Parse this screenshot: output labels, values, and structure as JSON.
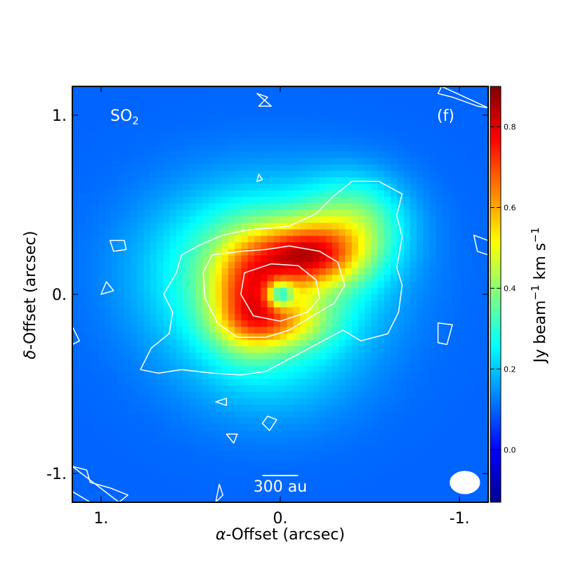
{
  "chart_data": {
    "type": "heatmap",
    "map_label": "SO",
    "map_label_sub": "2",
    "panel_label": "(f)",
    "xlabel_symbol": "α",
    "xlabel_rest": "-Offset (arcsec)",
    "ylabel_symbol": "δ",
    "ylabel_rest": "-Offset (arcsec)",
    "x_ticks": [
      {
        "value": 1.0,
        "label": "1."
      },
      {
        "value": 0.0,
        "label": "0."
      },
      {
        "value": -1.0,
        "label": "-1."
      }
    ],
    "y_ticks": [
      {
        "value": 1.0,
        "label": "1."
      },
      {
        "value": 0.0,
        "label": "0."
      },
      {
        "value": -1.0,
        "label": "-1."
      }
    ],
    "xlim": [
      1.16,
      -1.16
    ],
    "ylim": [
      -1.16,
      1.16
    ],
    "scalebar_label": "300 au",
    "scalebar_length_arcsec": 0.2,
    "colorbar": {
      "label_main": "Jy beam",
      "label_sup1": "−1",
      "label_mid": " km s",
      "label_sup2": "−1",
      "range": [
        -0.13,
        0.9
      ],
      "ticks": [
        {
          "value": 0.0,
          "label": "0.0"
        },
        {
          "value": 0.2,
          "label": "0.2"
        },
        {
          "value": 0.4,
          "label": "0.4"
        },
        {
          "value": 0.6,
          "label": "0.6"
        },
        {
          "value": 0.8,
          "label": "0.8"
        }
      ],
      "colormap": "jet"
    },
    "contour_color": "#ffffff",
    "emission_components": [
      {
        "type": "background",
        "value": 0.1
      },
      {
        "type": "gaussian",
        "x": 0.1,
        "y": 0.12,
        "sx": 0.42,
        "sy": 0.32,
        "amp": 0.33
      },
      {
        "type": "gaussian",
        "x": -0.15,
        "y": 0.22,
        "sx": 0.2,
        "sy": 0.12,
        "amp": 0.42
      },
      {
        "type": "gaussian",
        "x": 0.18,
        "y": 0.0,
        "sx": 0.14,
        "sy": 0.2,
        "amp": 0.3
      },
      {
        "type": "gaussian",
        "x": 0.02,
        "y": -0.16,
        "sx": 0.2,
        "sy": 0.1,
        "amp": 0.22
      },
      {
        "type": "gaussian",
        "x": -0.42,
        "y": 0.4,
        "sx": 0.2,
        "sy": 0.18,
        "amp": 0.22
      },
      {
        "type": "gaussian",
        "x": 0.05,
        "y": -0.42,
        "sx": 0.35,
        "sy": 0.25,
        "amp": 0.08
      },
      {
        "type": "gaussian",
        "x": 0.0,
        "y": 0.0,
        "sx": 0.05,
        "sy": 0.05,
        "amp": -0.38
      }
    ],
    "contours": [
      {
        "level": 0.2,
        "points": [
          [
            0.44,
            0.28
          ],
          [
            0.32,
            0.33
          ],
          [
            0.18,
            0.36
          ],
          [
            0.05,
            0.37
          ],
          [
            -0.05,
            0.38
          ],
          [
            -0.2,
            0.45
          ],
          [
            -0.3,
            0.55
          ],
          [
            -0.4,
            0.63
          ],
          [
            -0.55,
            0.63
          ],
          [
            -0.68,
            0.56
          ],
          [
            -0.65,
            0.44
          ],
          [
            -0.68,
            0.32
          ],
          [
            -0.65,
            0.15
          ],
          [
            -0.68,
            0.05
          ],
          [
            -0.66,
            -0.1
          ],
          [
            -0.6,
            -0.22
          ],
          [
            -0.45,
            -0.26
          ],
          [
            -0.35,
            -0.2
          ],
          [
            -0.2,
            -0.28
          ],
          [
            -0.05,
            -0.36
          ],
          [
            0.08,
            -0.43
          ],
          [
            0.22,
            -0.45
          ],
          [
            0.38,
            -0.44
          ],
          [
            0.55,
            -0.42
          ],
          [
            0.68,
            -0.44
          ],
          [
            0.78,
            -0.42
          ],
          [
            0.72,
            -0.3
          ],
          [
            0.62,
            -0.22
          ],
          [
            0.6,
            -0.1
          ],
          [
            0.65,
            0.0
          ],
          [
            0.58,
            0.12
          ],
          [
            0.55,
            0.22
          ]
        ]
      },
      {
        "level": 0.5,
        "points": [
          [
            0.38,
            0.22
          ],
          [
            0.22,
            0.24
          ],
          [
            0.08,
            0.25
          ],
          [
            -0.05,
            0.27
          ],
          [
            -0.22,
            0.24
          ],
          [
            -0.32,
            0.18
          ],
          [
            -0.36,
            0.05
          ],
          [
            -0.3,
            -0.05
          ],
          [
            -0.18,
            -0.12
          ],
          [
            -0.05,
            -0.2
          ],
          [
            0.08,
            -0.24
          ],
          [
            0.24,
            -0.24
          ],
          [
            0.35,
            -0.16
          ],
          [
            0.42,
            -0.02
          ],
          [
            0.43,
            0.12
          ]
        ]
      },
      {
        "level": 0.7,
        "points": [
          [
            0.2,
            0.12
          ],
          [
            0.05,
            0.17
          ],
          [
            -0.1,
            0.16
          ],
          [
            -0.2,
            0.08
          ],
          [
            -0.22,
            -0.02
          ],
          [
            -0.15,
            -0.1
          ],
          [
            0.0,
            -0.15
          ],
          [
            0.15,
            -0.12
          ],
          [
            0.22,
            0.0
          ]
        ]
      },
      {
        "level": 0.05,
        "points": [
          [
            0.1,
            -0.72
          ],
          [
            0.07,
            -0.68
          ],
          [
            0.02,
            -0.7
          ],
          [
            0.06,
            -0.76
          ]
        ]
      },
      {
        "level": 0.05,
        "points": [
          [
            0.36,
            -0.6
          ],
          [
            0.3,
            -0.58
          ],
          [
            0.3,
            -0.62
          ]
        ]
      },
      {
        "level": 0.05,
        "points": [
          [
            0.3,
            -0.78
          ],
          [
            0.24,
            -0.78
          ],
          [
            0.26,
            -0.83
          ]
        ]
      },
      {
        "level": 0.05,
        "points": [
          [
            0.97,
            0.07
          ],
          [
            0.93,
            0.02
          ],
          [
            1.0,
            0.0
          ]
        ]
      },
      {
        "level": 0.05,
        "points": [
          [
            0.95,
            0.3
          ],
          [
            0.87,
            0.3
          ],
          [
            0.86,
            0.25
          ],
          [
            0.93,
            0.24
          ]
        ]
      },
      {
        "level": 0.05,
        "points": [
          [
            1.16,
            -0.18
          ],
          [
            1.12,
            -0.26
          ],
          [
            1.16,
            -0.28
          ]
        ]
      },
      {
        "level": 0.05,
        "points": [
          [
            -0.88,
            -0.16
          ],
          [
            -0.96,
            -0.17
          ],
          [
            -0.93,
            -0.28
          ],
          [
            -0.88,
            -0.27
          ]
        ]
      },
      {
        "level": 0.05,
        "points": [
          [
            -1.08,
            0.33
          ],
          [
            -1.16,
            0.3
          ],
          [
            -1.16,
            0.22
          ],
          [
            -1.1,
            0.24
          ]
        ]
      },
      {
        "level": 0.05,
        "points": [
          [
            0.12,
            0.67
          ],
          [
            0.1,
            0.64
          ],
          [
            0.13,
            0.63
          ]
        ]
      },
      {
        "level": 0.05,
        "points": [
          [
            0.13,
            1.12
          ],
          [
            0.07,
            1.1
          ],
          [
            0.12,
            1.05
          ],
          [
            0.05,
            1.05
          ]
        ]
      },
      {
        "level": 0.05,
        "points": [
          [
            -0.9,
            1.16
          ],
          [
            -0.88,
            1.12
          ],
          [
            -0.96,
            1.1
          ],
          [
            -1.1,
            1.05
          ],
          [
            -1.16,
            1.04
          ]
        ]
      },
      {
        "level": 0.05,
        "points": [
          [
            1.16,
            -0.96
          ],
          [
            1.08,
            -0.98
          ],
          [
            1.06,
            -1.05
          ],
          [
            0.95,
            -1.08
          ],
          [
            0.85,
            -1.12
          ],
          [
            0.9,
            -1.16
          ]
        ]
      },
      {
        "level": 0.05,
        "points": [
          [
            1.16,
            -1.1
          ],
          [
            1.06,
            -1.16
          ]
        ]
      },
      {
        "level": 0.05,
        "points": [
          [
            0.34,
            -1.06
          ],
          [
            0.32,
            -1.12
          ],
          [
            0.36,
            -1.16
          ]
        ]
      }
    ],
    "beam": {
      "x": -1.03,
      "y": -1.05,
      "bmaj": 0.17,
      "bmin": 0.13,
      "pa": 0
    }
  }
}
